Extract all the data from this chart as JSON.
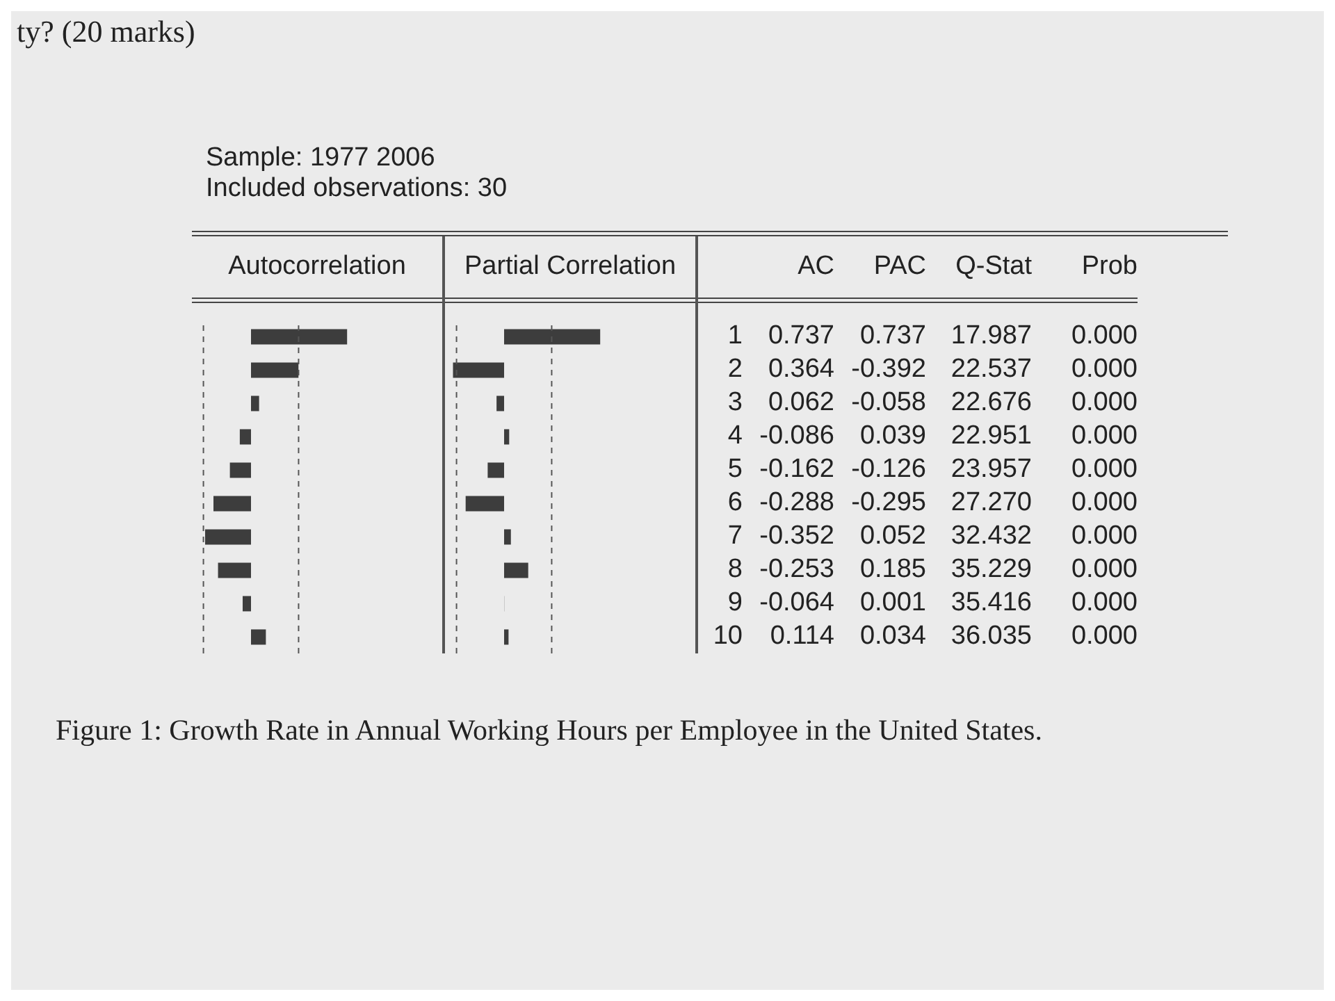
{
  "chart_data": [
    {
      "type": "bar",
      "orientation": "horizontal",
      "title": "Autocorrelation",
      "categories": [
        "1",
        "2",
        "3",
        "4",
        "5",
        "6",
        "7",
        "8",
        "9",
        "10"
      ],
      "values": [
        0.737,
        0.364,
        0.062,
        -0.086,
        -0.162,
        -0.288,
        -0.352,
        -0.253,
        -0.064,
        0.114
      ],
      "color": "#3d3d3d",
      "data_labels": true,
      "ref_lines": [
        {
          "axis": "x",
          "value": -0.365,
          "line_style": "dashed",
          "color": "#555555"
        },
        {
          "axis": "x",
          "value": 0.365,
          "line_style": "dashed",
          "color": "#555555"
        }
      ],
      "annotations": [
        "ty? (20 marks)",
        "Sample: 1977 2006",
        "Included observations: 30",
        "Figure 1: Growth Rate in Annual Working Hours per Employee in the United States."
      ]
    },
    {
      "type": "bar",
      "orientation": "horizontal",
      "title": "Partial Correlation",
      "categories": [
        null,
        null,
        null,
        null,
        null,
        null,
        null,
        null,
        null,
        null
      ],
      "values": [
        0.737,
        -0.392,
        -0.058,
        0.039,
        -0.126,
        -0.295,
        0.052,
        0.185,
        0.001,
        0.034
      ],
      "color": "#3d3d3d",
      "data_labels": true,
      "ref_lines": [
        {
          "axis": "x",
          "value": -0.365,
          "line_style": "dashed",
          "color": "#555555"
        },
        {
          "axis": "x",
          "value": 0.365,
          "line_style": "dashed",
          "color": "#555555"
        }
      ]
    },
    {
      "type": "other",
      "annotations": [
        "AC",
        "PAC",
        "Q-Stat",
        "17.987",
        "22.537",
        "22.676",
        "22.951",
        "23.957",
        "27.270",
        "32.432",
        "35.229",
        "35.416",
        "36.035",
        "Prob",
        "0.000",
        "0.000",
        "0.000",
        "0.000",
        "0.000",
        "0.000",
        "0.000",
        "0.000",
        "0.000",
        "0.000"
      ]
    }
  ]
}
